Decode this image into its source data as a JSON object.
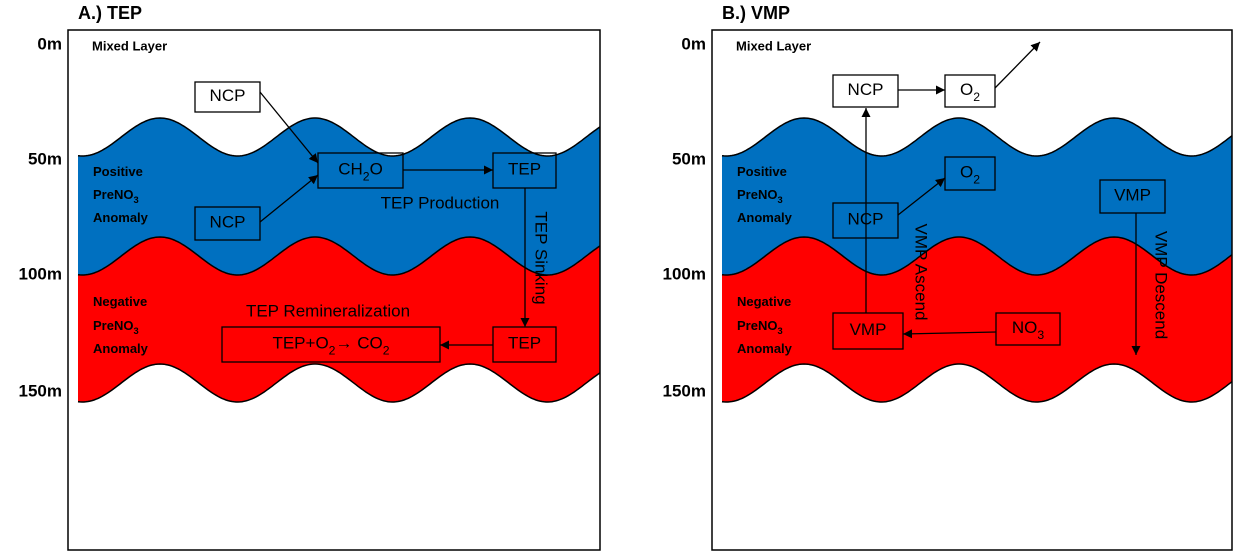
{
  "panels": [
    {
      "title": "A.) TEP",
      "depths": [
        "0m",
        "50m",
        "100m",
        "150m"
      ],
      "mixed_layer": "Mixed Layer",
      "positive_layer": [
        [
          "Positive"
        ],
        [
          "PreNO",
          "3"
        ],
        [
          "Anomaly"
        ]
      ],
      "negative_layer": [
        [
          "Negative"
        ],
        [
          "PreNO",
          "3"
        ],
        [
          "Anomaly"
        ]
      ],
      "boxes": [
        [
          "NCP"
        ],
        [
          "CH",
          "2",
          "O"
        ],
        [
          "TEP"
        ],
        [
          "NCP"
        ],
        [
          "TEP+O",
          "2",
          "→ CO",
          "2"
        ],
        [
          "TEP"
        ]
      ],
      "labels": [
        "TEP Production",
        "TEP Sinking",
        "TEP Remineralization"
      ]
    },
    {
      "title": "B.) VMP",
      "depths": [
        "0m",
        "50m",
        "100m",
        "150m"
      ],
      "mixed_layer": "Mixed Layer",
      "positive_layer": [
        [
          "Positive"
        ],
        [
          "PreNO",
          "3"
        ],
        [
          "Anomaly"
        ]
      ],
      "negative_layer": [
        [
          "Negative"
        ],
        [
          "PreNO",
          "3"
        ],
        [
          "Anomaly"
        ]
      ],
      "boxes": [
        [
          "NCP"
        ],
        [
          "O",
          "2"
        ],
        [
          "O",
          "2"
        ],
        [
          "NCP"
        ],
        [
          "VMP"
        ],
        [
          "VMP"
        ],
        [
          "NO",
          "3"
        ]
      ],
      "labels": [
        "VMP Ascend",
        "VMP Descend"
      ]
    }
  ]
}
